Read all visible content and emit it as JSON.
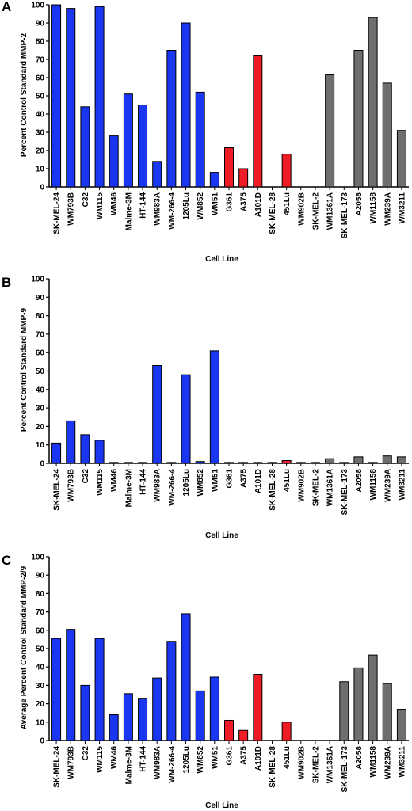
{
  "colors": {
    "blue": "#1a36f0",
    "red": "#ee1c24",
    "gray": "#6e6e6e",
    "axis": "#000000"
  },
  "chart_data": [
    {
      "type": "bar",
      "panel": "A",
      "ylabel": "Percent  Control Standard  MMP-2",
      "xlabel": "Cell Line",
      "ylim": [
        0,
        100
      ],
      "yticks": [
        0,
        10,
        20,
        30,
        40,
        50,
        60,
        70,
        80,
        90,
        100
      ],
      "categories": [
        "SK-MEL-24",
        "WM793B",
        "C32",
        "WM115",
        "WM46",
        "Malme-3M",
        "HT-144",
        "WM983A",
        "WM-266-4",
        "1205Lu",
        "WM852",
        "WM51",
        "G361",
        "A375",
        "A101D",
        "SK-MEL-28",
        "451Lu",
        "WM902B",
        "SK-MEL-2",
        "WM1361A",
        "SK-MEL-173",
        "A2058",
        "WM1158",
        "WM239A",
        "WM3211"
      ],
      "values": [
        100,
        98,
        44,
        99,
        28,
        51,
        45,
        14,
        75,
        90,
        52,
        8,
        21.5,
        10,
        72,
        0,
        18,
        0,
        0,
        61.5,
        0,
        75,
        93,
        57,
        31
      ],
      "groups": [
        "blue",
        "blue",
        "blue",
        "blue",
        "blue",
        "blue",
        "blue",
        "blue",
        "blue",
        "blue",
        "blue",
        "blue",
        "red",
        "red",
        "red",
        "red",
        "red",
        "gray",
        "gray",
        "gray",
        "gray",
        "gray",
        "gray",
        "gray",
        "gray"
      ]
    },
    {
      "type": "bar",
      "panel": "B",
      "ylabel": "Percent  Control Standard  MMP-9",
      "xlabel": "Cell Line",
      "ylim": [
        0,
        100
      ],
      "yticks": [
        0,
        10,
        20,
        30,
        40,
        50,
        60,
        70,
        80,
        90,
        100
      ],
      "categories": [
        "SK-MEL-24",
        "WM793B",
        "C32",
        "WM115",
        "WM46",
        "Malme-3M",
        "HT-144",
        "WM983A",
        "WM-266-4",
        "1205Lu",
        "WM852",
        "WM51",
        "G361",
        "A375",
        "A101D",
        "SK-MEL-28",
        "451Lu",
        "WM902B",
        "SK-MEL-2",
        "WM1361A",
        "SK-MEL-173",
        "A2058",
        "WM1158",
        "WM239A",
        "WM3211"
      ],
      "values": [
        11,
        23,
        15.5,
        12.5,
        0.5,
        0.5,
        0.5,
        53,
        0.5,
        48,
        1,
        61,
        0.5,
        0.5,
        0.5,
        0.5,
        1.5,
        0.5,
        0.5,
        2.5,
        0.5,
        3.5,
        0.5,
        4,
        3.5
      ],
      "groups": [
        "blue",
        "blue",
        "blue",
        "blue",
        "blue",
        "blue",
        "blue",
        "blue",
        "blue",
        "blue",
        "blue",
        "blue",
        "red",
        "red",
        "red",
        "red",
        "red",
        "gray",
        "gray",
        "gray",
        "gray",
        "gray",
        "gray",
        "gray",
        "gray"
      ]
    },
    {
      "type": "bar",
      "panel": "C",
      "ylabel": "Average Percent  Control Standard  MMP-2/9",
      "xlabel": "Cell Line",
      "ylim": [
        0,
        100
      ],
      "yticks": [
        0,
        10,
        20,
        30,
        40,
        50,
        60,
        70,
        80,
        90,
        100
      ],
      "categories": [
        "SK-MEL-24",
        "WM793B",
        "C32",
        "WM115",
        "WM46",
        "Malme-3M",
        "HT-144",
        "WM983A",
        "WM-266-4",
        "1205Lu",
        "WM852",
        "WM51",
        "G361",
        "A375",
        "A101D",
        "SK-MEL-28",
        "451Lu",
        "WM902B",
        "SK-MEL-2",
        "WM1361A",
        "SK-MEL-173",
        "A2058",
        "WM1158",
        "WM239A",
        "WM3211"
      ],
      "values": [
        55.5,
        60.5,
        30,
        55.5,
        14,
        25.5,
        23,
        34,
        54,
        69,
        27,
        34.5,
        11,
        5.5,
        36,
        0,
        10,
        0,
        0,
        0,
        32,
        39.5,
        46.5,
        31,
        17
      ],
      "groups": [
        "blue",
        "blue",
        "blue",
        "blue",
        "blue",
        "blue",
        "blue",
        "blue",
        "blue",
        "blue",
        "blue",
        "blue",
        "red",
        "red",
        "red",
        "red",
        "red",
        "gray",
        "gray",
        "gray",
        "gray",
        "gray",
        "gray",
        "gray",
        "gray"
      ]
    }
  ]
}
